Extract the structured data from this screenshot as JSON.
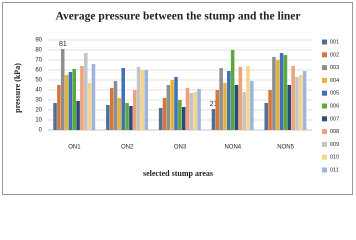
{
  "chart_data": {
    "type": "bar",
    "title": "Average pressure between the stump and the liner",
    "x_label": "selected stump areas",
    "y_label": "pressure (kPa)",
    "categories": [
      "ON1",
      "ON2",
      "ON3",
      "NON4",
      "NON5"
    ],
    "series": [
      {
        "name": "001",
        "color": "#4f6f95",
        "values": [
          27,
          25,
          22,
          21,
          27
        ],
        "value_labels": [
          null,
          null,
          null,
          "21",
          null
        ]
      },
      {
        "name": "002",
        "color": "#d5763b",
        "values": [
          45,
          42,
          32,
          40,
          40
        ]
      },
      {
        "name": "003",
        "color": "#8e8e8e",
        "values": [
          81,
          49,
          45,
          62,
          73
        ],
        "value_labels": [
          "81",
          null,
          null,
          null,
          null
        ]
      },
      {
        "name": "004",
        "color": "#e3b33c",
        "values": [
          55,
          32,
          50,
          47,
          70
        ]
      },
      {
        "name": "005",
        "color": "#4170b8",
        "values": [
          58,
          62,
          53,
          59,
          77
        ]
      },
      {
        "name": "006",
        "color": "#5aa83e",
        "values": [
          61,
          27,
          30,
          80,
          75
        ]
      },
      {
        "name": "007",
        "color": "#2e4a74",
        "values": [
          29,
          24,
          23,
          45,
          45
        ]
      },
      {
        "name": "008",
        "color": "#eea27c",
        "values": [
          64,
          40,
          42,
          63,
          64
        ]
      },
      {
        "name": "009",
        "color": "#c4c4c4",
        "values": [
          77,
          63,
          37,
          38,
          53
        ]
      },
      {
        "name": "010",
        "color": "#f3d58c",
        "values": [
          47,
          60,
          38,
          64,
          55
        ]
      },
      {
        "name": "011",
        "color": "#9db4df",
        "values": [
          66,
          60,
          41,
          49,
          59
        ]
      }
    ],
    "ylim": [
      0,
      90
    ],
    "yticks": [
      0,
      10,
      20,
      30,
      40,
      50,
      60,
      70,
      80,
      90
    ],
    "grid": true,
    "legend": "right"
  }
}
